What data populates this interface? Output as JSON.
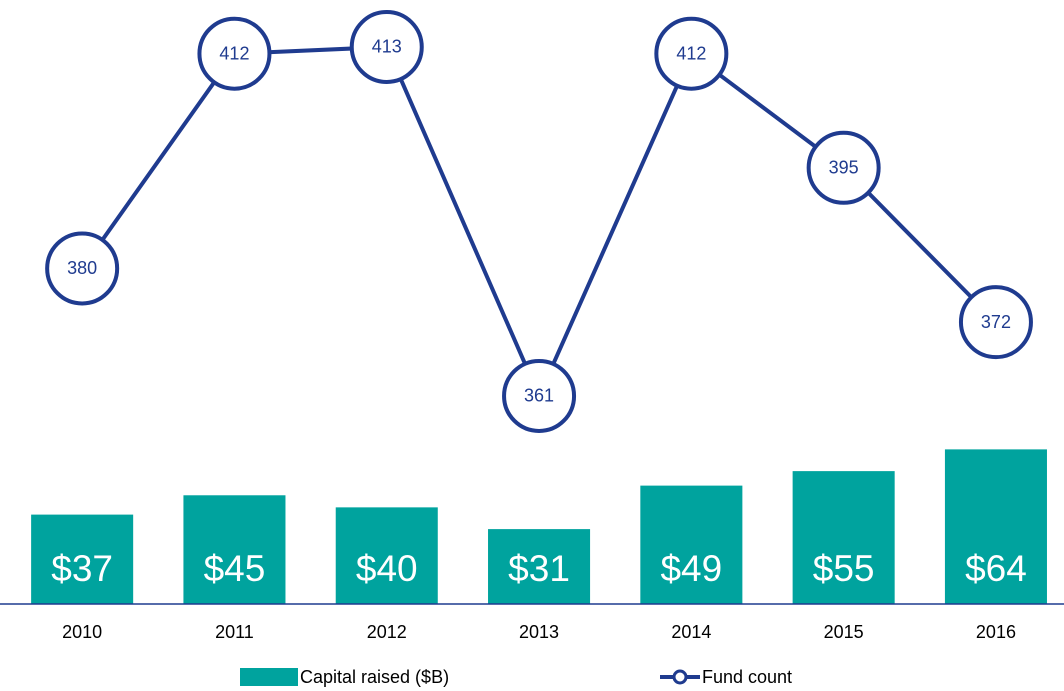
{
  "chart_data": {
    "type": "bar-line",
    "categories": [
      "2010",
      "2011",
      "2012",
      "2013",
      "2014",
      "2015",
      "2016"
    ],
    "series": [
      {
        "name": "Capital raised ($B)",
        "type": "bar",
        "color": "#00a39e",
        "values": [
          37,
          45,
          40,
          31,
          49,
          55,
          64
        ],
        "value_labels": [
          "$37",
          "$45",
          "$40",
          "$31",
          "$49",
          "$55",
          "$64"
        ]
      },
      {
        "name": "Fund count",
        "type": "line",
        "axis": "y2",
        "color": "#1f3b8f",
        "values": [
          380,
          412,
          413,
          361,
          412,
          395,
          372
        ]
      }
    ],
    "ylim": [
      0,
      250
    ],
    "y2lim": [
      330,
      420
    ]
  }
}
